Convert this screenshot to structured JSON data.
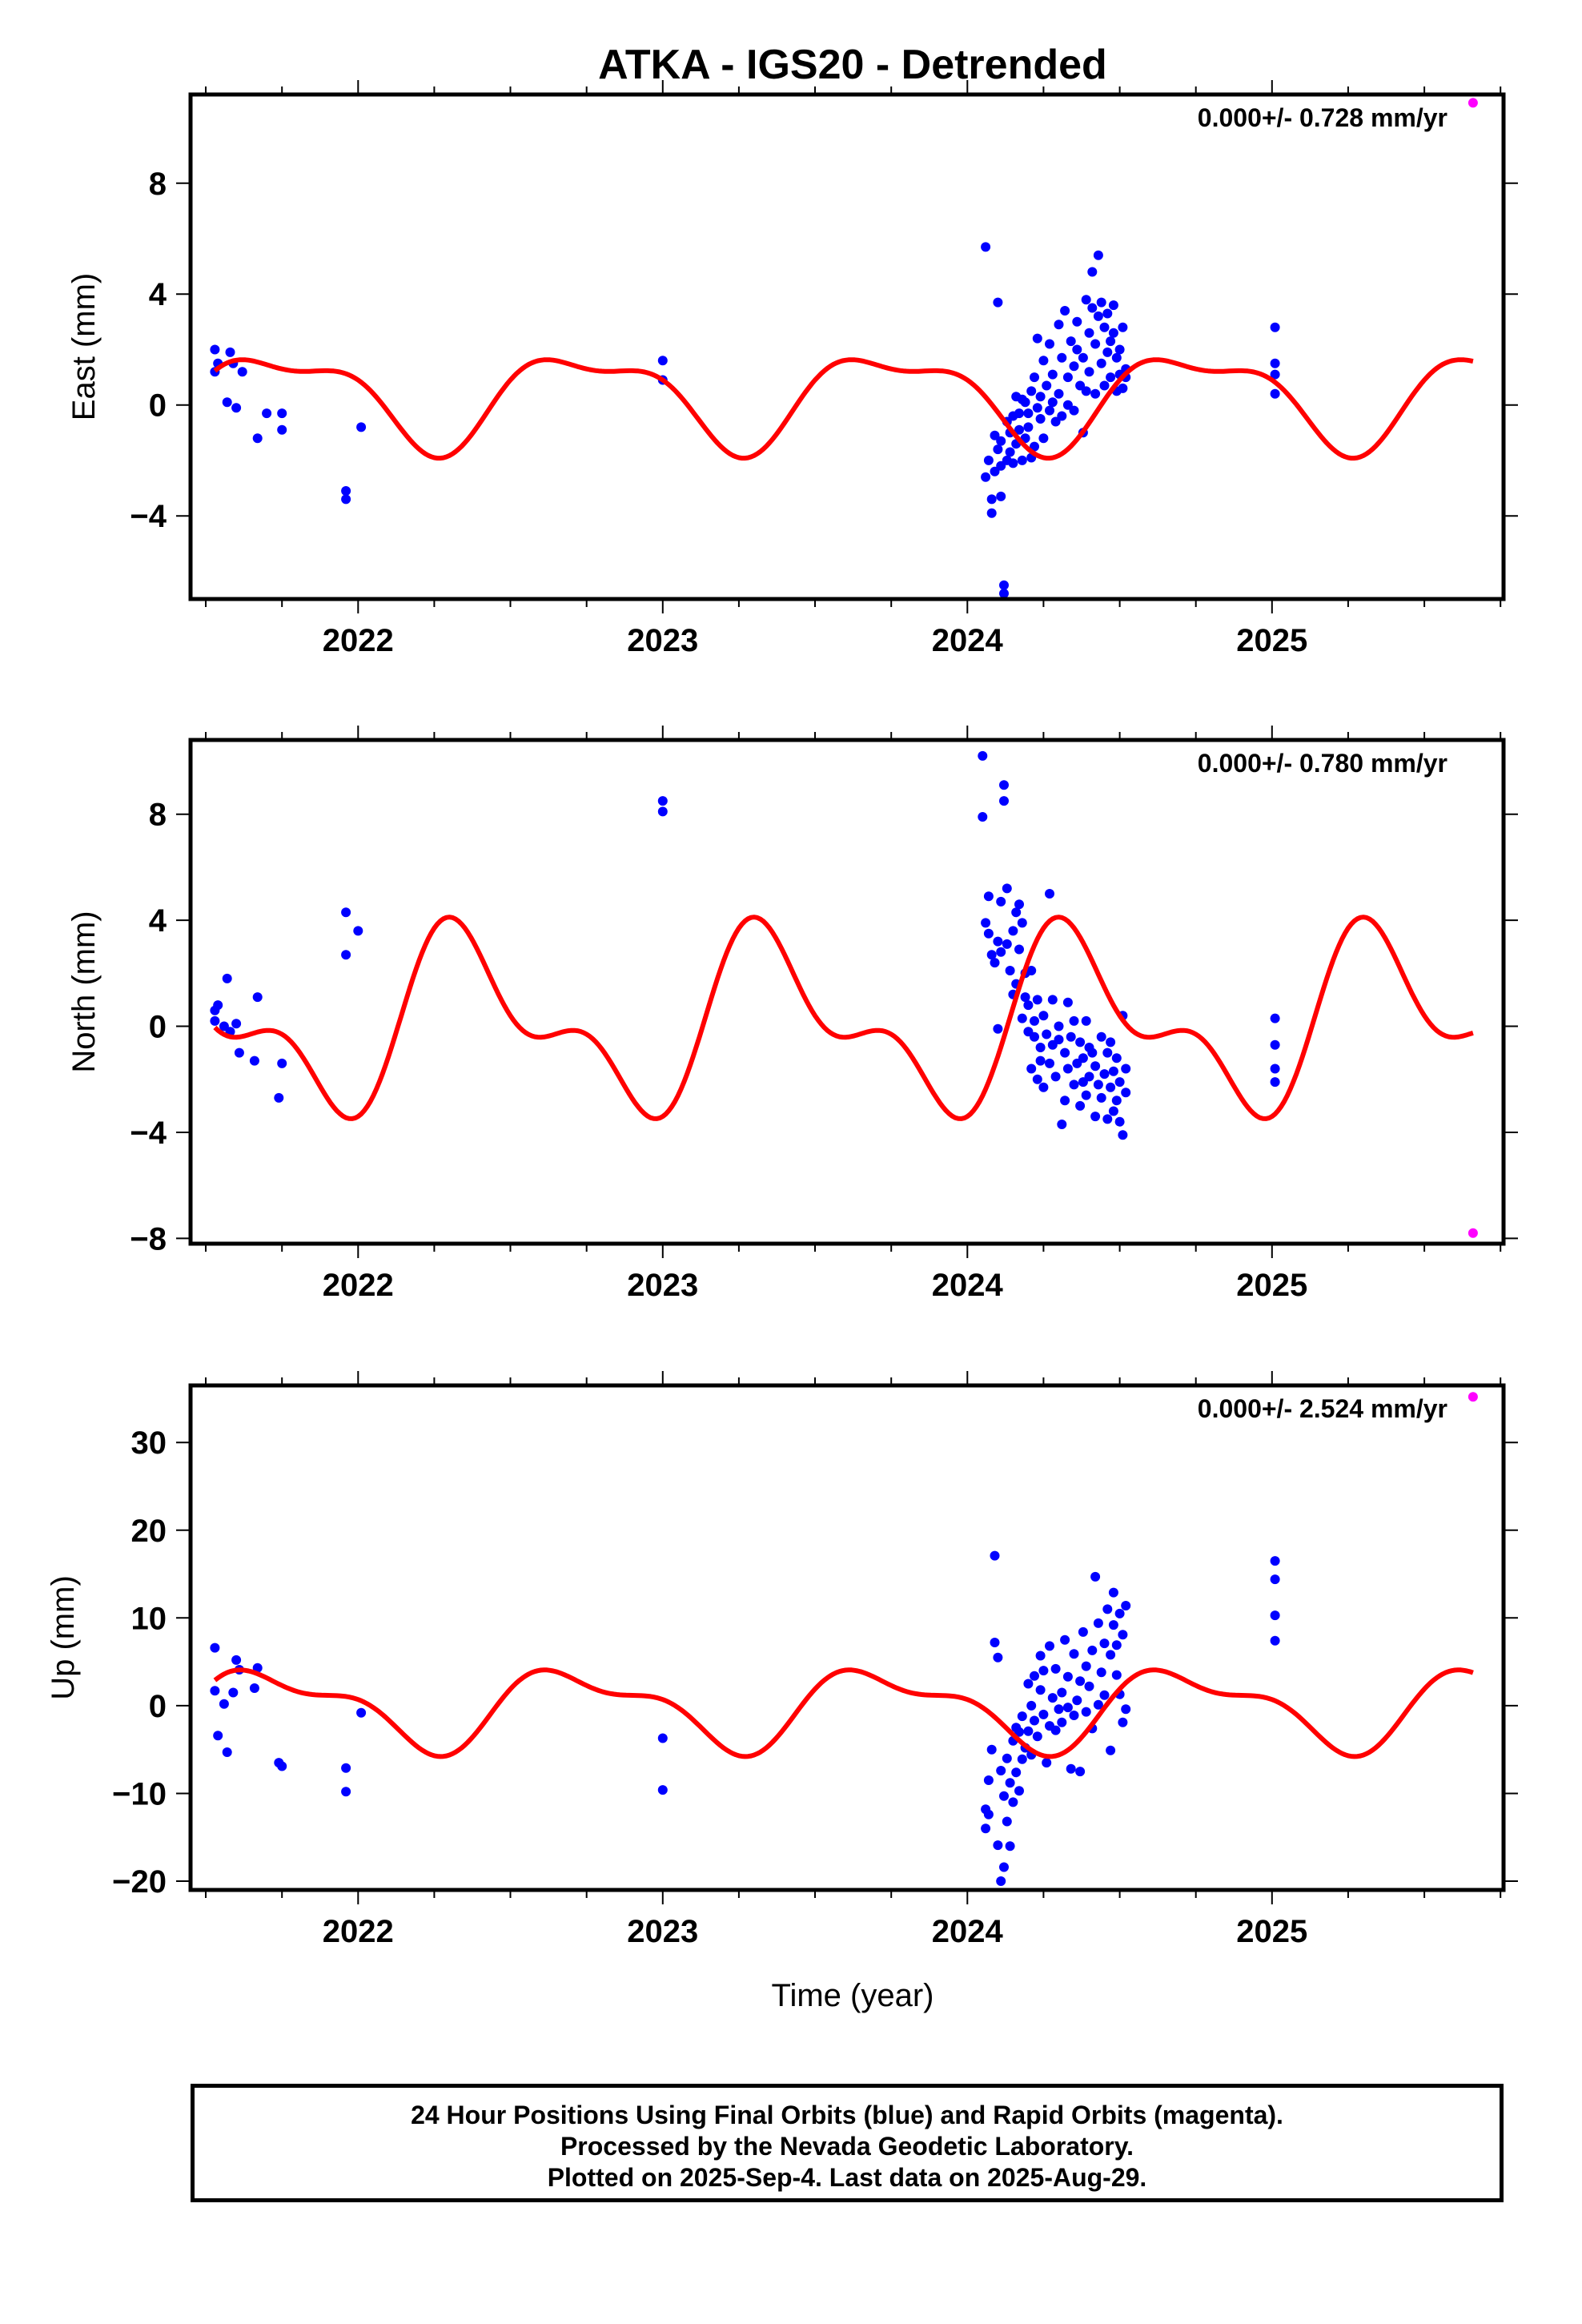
{
  "colors": {
    "final_orbits": "#0000ff",
    "rapid_orbits": "#ff00ff",
    "model_curve": "#ff0000",
    "axes": "#000000"
  },
  "footer": {
    "line1": "24 Hour Positions Using Final Orbits (blue) and Rapid Orbits (magenta).",
    "line2": "Processed by the Nevada Geodetic Laboratory.",
    "line3": "Plotted on 2025-Sep-4. Last data on 2025-Aug-29."
  },
  "chart_data": [
    {
      "type": "scatter",
      "title": "ATKA - IGS20 - Detrended",
      "ylabel": "East (mm)",
      "xlabel": "",
      "xlim": [
        2021.45,
        2025.76
      ],
      "ylim": [
        -7.0,
        11.2
      ],
      "xticks": [
        2022,
        2023,
        2024,
        2025
      ],
      "xtick_labels": [
        "2022",
        "2023",
        "2024",
        "2025"
      ],
      "yticks": [
        -4,
        0,
        4,
        8
      ],
      "ytick_labels": [
        "−4",
        "0",
        "4",
        "8"
      ],
      "rate_label": "0.000+/- 0.728 mm/yr",
      "grid": false,
      "model": {
        "name": "",
        "t0": 2021.53,
        "annual_cos": 0.0,
        "annual_sin": -1.6,
        "semi_cos": 0.6,
        "semi_sin": 0.2,
        "offset": 0.3,
        "x_end": 2025.66
      },
      "series": [
        {
          "name": "Final orbits",
          "color": "#0000ff",
          "x": [
            2021.53,
            2021.53,
            2021.54,
            2021.57,
            2021.58,
            2021.59,
            2021.6,
            2021.62,
            2021.67,
            2021.7,
            2021.75,
            2021.75,
            2021.96,
            2021.96,
            2022.01,
            2023.0,
            2023.0,
            2024.06,
            2024.06,
            2024.07,
            2024.08,
            2024.08,
            2024.09,
            2024.09,
            2024.1,
            2024.1,
            2024.11,
            2024.11,
            2024.11,
            2024.12,
            2024.12,
            2024.13,
            2024.13,
            2024.14,
            2024.14,
            2024.15,
            2024.15,
            2024.16,
            2024.16,
            2024.17,
            2024.17,
            2024.18,
            2024.18,
            2024.19,
            2024.19,
            2024.2,
            2024.2,
            2024.21,
            2024.21,
            2024.22,
            2024.22,
            2024.23,
            2024.23,
            2024.24,
            2024.24,
            2024.25,
            2024.25,
            2024.26,
            2024.27,
            2024.27,
            2024.28,
            2024.28,
            2024.29,
            2024.3,
            2024.3,
            2024.31,
            2024.31,
            2024.32,
            2024.33,
            2024.33,
            2024.34,
            2024.35,
            2024.35,
            2024.36,
            2024.36,
            2024.37,
            2024.38,
            2024.38,
            2024.39,
            2024.39,
            2024.4,
            2024.4,
            2024.41,
            2024.41,
            2024.42,
            2024.42,
            2024.43,
            2024.43,
            2024.44,
            2024.44,
            2024.45,
            2024.45,
            2024.46,
            2024.46,
            2024.47,
            2024.47,
            2024.48,
            2024.48,
            2024.49,
            2024.49,
            2024.5,
            2024.5,
            2024.51,
            2024.51,
            2024.52,
            2024.52,
            2025.01,
            2025.01,
            2025.01,
            2025.01
          ],
          "y": [
            2.0,
            1.2,
            1.5,
            0.1,
            1.9,
            1.5,
            -0.1,
            1.2,
            -1.2,
            -0.3,
            -0.9,
            -0.3,
            -3.1,
            -3.4,
            -0.8,
            1.6,
            0.9,
            5.7,
            -2.6,
            -2.0,
            -3.9,
            -3.4,
            -1.1,
            -2.4,
            3.7,
            -1.6,
            -2.2,
            -3.3,
            -1.3,
            -6.5,
            -6.8,
            -0.6,
            -2.0,
            -1.0,
            -1.7,
            -2.1,
            -0.4,
            0.3,
            -1.4,
            -0.9,
            -0.3,
            -2.0,
            0.2,
            -1.2,
            0.1,
            -0.8,
            -0.3,
            -1.9,
            0.5,
            -1.5,
            1.0,
            -0.1,
            2.4,
            0.3,
            -0.5,
            1.6,
            -1.2,
            0.7,
            -0.2,
            2.2,
            0.1,
            1.1,
            -0.6,
            2.9,
            0.4,
            -0.4,
            1.7,
            3.4,
            1.0,
            0.0,
            2.3,
            1.4,
            -0.2,
            2.0,
            3.0,
            0.7,
            -1.0,
            1.7,
            3.8,
            0.5,
            2.6,
            1.2,
            3.5,
            4.8,
            0.4,
            2.2,
            3.2,
            5.4,
            1.5,
            3.7,
            0.7,
            2.8,
            3.3,
            1.9,
            2.3,
            1.0,
            3.6,
            2.6,
            0.5,
            1.7,
            2.0,
            1.1,
            2.8,
            0.6,
            1.3,
            1.0,
            2.8,
            1.5,
            1.1,
            0.4
          ],
          "marker": "circle"
        },
        {
          "name": "Rapid orbits",
          "color": "#ff00ff",
          "x": [
            2025.66
          ],
          "y": [
            10.9
          ],
          "marker": "circle"
        }
      ]
    },
    {
      "type": "scatter",
      "title": "",
      "ylabel": "North (mm)",
      "xlabel": "",
      "xlim": [
        2021.45,
        2025.76
      ],
      "ylim": [
        -8.2,
        10.8
      ],
      "xticks": [
        2022,
        2023,
        2024,
        2025
      ],
      "xtick_labels": [
        "2022",
        "2023",
        "2024",
        "2025"
      ],
      "yticks": [
        -8,
        -4,
        0,
        4,
        8
      ],
      "ytick_labels": [
        "−8",
        "−4",
        "0",
        "4",
        "8"
      ],
      "rate_label": "0.000+/- 0.780 mm/yr",
      "grid": false,
      "model": {
        "name": "",
        "t0": 2021.53,
        "annual_cos": -1.9,
        "annual_sin": 2.0,
        "semi_cos": -1.6,
        "semi_sin": -0.4,
        "offset": 0.1,
        "x_end": 2025.66
      },
      "series": [
        {
          "name": "Final orbits",
          "color": "#0000ff",
          "x": [
            2021.53,
            2021.53,
            2021.54,
            2021.56,
            2021.57,
            2021.58,
            2021.6,
            2021.61,
            2021.66,
            2021.67,
            2021.74,
            2021.75,
            2021.96,
            2021.96,
            2022.0,
            2023.0,
            2023.0,
            2024.05,
            2024.05,
            2024.06,
            2024.07,
            2024.07,
            2024.08,
            2024.09,
            2024.1,
            2024.1,
            2024.11,
            2024.11,
            2024.12,
            2024.12,
            2024.13,
            2024.13,
            2024.14,
            2024.15,
            2024.15,
            2024.16,
            2024.16,
            2024.17,
            2024.17,
            2024.18,
            2024.18,
            2024.19,
            2024.19,
            2024.2,
            2024.2,
            2024.21,
            2024.21,
            2024.22,
            2024.22,
            2024.23,
            2024.23,
            2024.24,
            2024.24,
            2024.25,
            2024.25,
            2024.26,
            2024.27,
            2024.27,
            2024.28,
            2024.28,
            2024.29,
            2024.3,
            2024.3,
            2024.31,
            2024.32,
            2024.32,
            2024.33,
            2024.33,
            2024.34,
            2024.35,
            2024.35,
            2024.36,
            2024.37,
            2024.37,
            2024.38,
            2024.38,
            2024.39,
            2024.39,
            2024.4,
            2024.4,
            2024.41,
            2024.42,
            2024.42,
            2024.43,
            2024.44,
            2024.44,
            2024.45,
            2024.46,
            2024.46,
            2024.47,
            2024.47,
            2024.48,
            2024.48,
            2024.49,
            2024.49,
            2024.5,
            2024.5,
            2024.51,
            2024.51,
            2024.52,
            2024.52,
            2025.01,
            2025.01,
            2025.01,
            2025.01
          ],
          "y": [
            0.6,
            0.2,
            0.8,
            0.0,
            1.8,
            -0.2,
            0.1,
            -1.0,
            -1.3,
            1.1,
            -2.7,
            -1.4,
            2.7,
            4.3,
            3.6,
            8.5,
            8.1,
            7.9,
            10.2,
            3.9,
            4.9,
            3.5,
            2.7,
            2.4,
            3.2,
            -0.1,
            4.7,
            2.8,
            9.1,
            8.5,
            5.2,
            3.1,
            2.1,
            1.2,
            3.6,
            1.6,
            4.3,
            2.9,
            4.6,
            3.9,
            0.3,
            2.0,
            1.1,
            -0.2,
            0.8,
            2.1,
            -1.6,
            0.2,
            -0.4,
            -2.0,
            1.0,
            -0.8,
            -1.3,
            0.4,
            -2.3,
            -0.3,
            5.0,
            -1.4,
            -0.7,
            1.0,
            -1.9,
            -0.5,
            0.0,
            -3.7,
            -1.0,
            -2.8,
            0.9,
            -1.6,
            -0.4,
            -2.2,
            0.2,
            -1.4,
            -3.0,
            -0.6,
            -2.1,
            -1.2,
            0.2,
            -2.6,
            -1.9,
            -0.8,
            -1.0,
            -3.4,
            -1.5,
            -2.2,
            -2.7,
            -0.4,
            -1.8,
            -3.5,
            -1.0,
            -2.3,
            -0.6,
            -1.7,
            -3.2,
            -2.8,
            -1.2,
            -3.6,
            -2.1,
            -4.1,
            0.4,
            -2.5,
            -1.6,
            0.3,
            -0.7,
            -1.6,
            -2.1
          ],
          "marker": "circle"
        },
        {
          "name": "Rapid orbits",
          "color": "#ff00ff",
          "x": [
            2025.66
          ],
          "y": [
            -7.8
          ],
          "marker": "circle"
        }
      ]
    },
    {
      "type": "scatter",
      "title": "",
      "ylabel": "Up (mm)",
      "xlabel": "Time (year)",
      "xlim": [
        2021.45,
        2025.76
      ],
      "ylim": [
        -21,
        36.5
      ],
      "xticks": [
        2022,
        2023,
        2024,
        2025
      ],
      "xtick_labels": [
        "2022",
        "2023",
        "2024",
        "2025"
      ],
      "yticks": [
        -20,
        -10,
        0,
        10,
        20,
        30
      ],
      "ytick_labels": [
        "−20",
        "−10",
        "0",
        "10",
        "20",
        "30"
      ],
      "rate_label": "0.000+/- 2.524 mm/yr",
      "grid": false,
      "model": {
        "name": "",
        "t0": 2021.53,
        "annual_cos": -0.6,
        "annual_sin": -4.0,
        "semi_cos": 1.5,
        "semi_sin": 1.0,
        "offset": -0.2,
        "x_end": 2025.66
      },
      "series": [
        {
          "name": "Final orbits",
          "color": "#0000ff",
          "x": [
            2021.53,
            2021.53,
            2021.54,
            2021.56,
            2021.57,
            2021.59,
            2021.6,
            2021.61,
            2021.66,
            2021.67,
            2021.74,
            2021.75,
            2021.96,
            2021.96,
            2022.01,
            2023.0,
            2023.0,
            2024.06,
            2024.06,
            2024.07,
            2024.07,
            2024.08,
            2024.09,
            2024.09,
            2024.1,
            2024.1,
            2024.11,
            2024.11,
            2024.12,
            2024.12,
            2024.13,
            2024.13,
            2024.14,
            2024.14,
            2024.15,
            2024.15,
            2024.16,
            2024.16,
            2024.17,
            2024.17,
            2024.18,
            2024.18,
            2024.19,
            2024.2,
            2024.2,
            2024.21,
            2024.21,
            2024.22,
            2024.22,
            2024.23,
            2024.24,
            2024.24,
            2024.25,
            2024.25,
            2024.26,
            2024.27,
            2024.27,
            2024.28,
            2024.29,
            2024.29,
            2024.3,
            2024.31,
            2024.31,
            2024.32,
            2024.33,
            2024.33,
            2024.34,
            2024.35,
            2024.35,
            2024.36,
            2024.37,
            2024.37,
            2024.38,
            2024.39,
            2024.39,
            2024.4,
            2024.41,
            2024.41,
            2024.42,
            2024.43,
            2024.43,
            2024.44,
            2024.45,
            2024.45,
            2024.46,
            2024.47,
            2024.47,
            2024.48,
            2024.48,
            2024.49,
            2024.49,
            2024.5,
            2024.5,
            2024.51,
            2024.51,
            2024.52,
            2024.52,
            2025.01,
            2025.01,
            2025.01,
            2025.01
          ],
          "y": [
            6.6,
            1.7,
            -3.4,
            0.2,
            -5.3,
            1.5,
            5.2,
            4.1,
            2.0,
            4.3,
            -6.5,
            -6.9,
            -7.1,
            -9.8,
            -0.8,
            -3.7,
            -9.6,
            -11.8,
            -14.0,
            -8.5,
            -12.4,
            -5.0,
            7.2,
            17.1,
            -15.9,
            5.5,
            -20.0,
            -7.4,
            -10.3,
            -18.4,
            -13.2,
            -6.0,
            -8.8,
            -16.0,
            -4.0,
            -11.0,
            -2.5,
            -7.6,
            -9.7,
            -3.0,
            -6.1,
            -1.2,
            -4.8,
            2.5,
            -2.9,
            0.0,
            -5.6,
            3.4,
            -1.7,
            -3.5,
            1.8,
            5.7,
            -1.0,
            4.0,
            -6.5,
            -2.3,
            6.8,
            0.9,
            -2.8,
            4.2,
            -0.4,
            1.5,
            -1.9,
            7.5,
            -0.2,
            3.3,
            -7.2,
            -1.1,
            5.9,
            0.6,
            -7.5,
            2.8,
            8.4,
            -0.7,
            4.5,
            2.2,
            -2.6,
            6.3,
            14.7,
            0.1,
            9.4,
            3.8,
            1.2,
            7.1,
            11.0,
            -5.1,
            5.8,
            12.9,
            9.2,
            3.5,
            6.9,
            10.5,
            1.3,
            8.1,
            -1.9,
            11.4,
            -0.4,
            16.5,
            14.4,
            10.3,
            7.4
          ],
          "marker": "circle"
        },
        {
          "name": "Rapid orbits",
          "color": "#ff00ff",
          "x": [
            2025.66
          ],
          "y": [
            35.2
          ],
          "marker": "circle"
        }
      ]
    }
  ]
}
